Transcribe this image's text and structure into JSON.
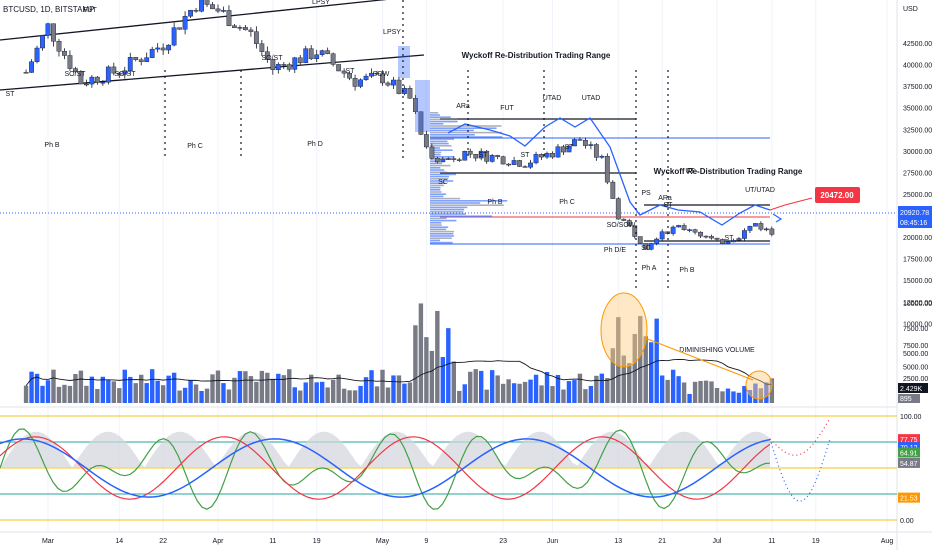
{
  "header": {
    "symbol": "BTCUSD, 1D, BITSTAMP",
    "currency": "USD"
  },
  "colors": {
    "up": "#2962ff",
    "down": "#787b86",
    "wick": "#131722",
    "current_price": "#f23645",
    "trend": "#1e40af",
    "osc_fill": "#d1d4dc",
    "osc_blue": "#2962ff",
    "osc_red": "#f23645",
    "osc_green": "#43a047",
    "osc_orange": "#ff9800",
    "band_yellow": "#f5c518",
    "band_teal": "#26a69a",
    "highlight": "#ffcc80"
  },
  "chart_data": {
    "type": "candlestick",
    "title": "BTCUSD, 1D, BITSTAMP",
    "y_unit": "USD",
    "y_ticks": [
      42500,
      40000,
      37500,
      35000,
      32500,
      30000,
      27500,
      25000,
      22500,
      20000,
      17500,
      15000,
      12500,
      10000,
      7500,
      5000,
      2500
    ],
    "ylim": [
      1000,
      43500
    ],
    "x_ticks": [
      "Mar",
      "14",
      "22",
      "Apr",
      "11",
      "19",
      "May",
      "9",
      "23",
      "Jun",
      "13",
      "21",
      "Jul",
      "11",
      "19",
      "Aug"
    ],
    "x_tick_dates": [
      "2022-03-01",
      "2022-03-14",
      "2022-03-22",
      "2022-04-01",
      "2022-04-11",
      "2022-04-19",
      "2022-05-01",
      "2022-05-09",
      "2022-05-23",
      "2022-06-01",
      "2022-06-13",
      "2022-06-21",
      "2022-07-01",
      "2022-07-11",
      "2022-07-19",
      "2022-08-01"
    ],
    "current_price": 20472.0,
    "price_label": "20920.78",
    "countdown": "08:45:16",
    "candles_close_path": [
      [
        "2022-02-25",
        39100
      ],
      [
        "2022-03-01",
        44400
      ],
      [
        "2022-03-07",
        38000
      ],
      [
        "2022-03-14",
        39300
      ],
      [
        "2022-03-22",
        42400
      ],
      [
        "2022-03-28",
        47100
      ],
      [
        "2022-04-01",
        46300
      ],
      [
        "2022-04-07",
        43500
      ],
      [
        "2022-04-11",
        39500
      ],
      [
        "2022-04-19",
        41500
      ],
      [
        "2022-04-26",
        38100
      ],
      [
        "2022-05-01",
        38500
      ],
      [
        "2022-05-06",
        36000
      ],
      [
        "2022-05-09",
        30100
      ],
      [
        "2022-05-12",
        28900
      ],
      [
        "2022-05-16",
        29800
      ],
      [
        "2022-05-23",
        29100
      ],
      [
        "2022-05-27",
        28600
      ],
      [
        "2022-06-01",
        29800
      ],
      [
        "2022-06-06",
        31300
      ],
      [
        "2022-06-10",
        28900
      ],
      [
        "2022-06-13",
        22500
      ],
      [
        "2022-06-18",
        19000
      ],
      [
        "2022-06-21",
        20800
      ],
      [
        "2022-06-26",
        21100
      ],
      [
        "2022-07-01",
        19300
      ],
      [
        "2022-07-05",
        20200
      ],
      [
        "2022-07-08",
        21600
      ],
      [
        "2022-07-11",
        20400
      ]
    ],
    "volume_ticks": [
      10000,
      7500,
      5000,
      2500
    ],
    "volume_label": "2.429K",
    "volume_label2": "895",
    "oscillator_ticks": [
      "100.00",
      "77.75",
      "70.12",
      "64.91",
      "54.87",
      "21.53",
      "0.00"
    ],
    "annotations": [
      "ST",
      "FUT",
      "SO/ST",
      "SO/ST",
      "LPSY",
      "SO/ST",
      "ST",
      "SOW",
      "LPSY",
      "Wyckoff Re-Distribution Trading Range",
      "ARa",
      "FUT",
      "UTAD",
      "UTAD",
      "ST",
      "ST",
      "ST",
      "PS",
      "SC",
      "Ph B",
      "Ph C",
      "SO/SOW",
      "Ph D/E",
      "SC",
      "Ph A",
      "Wyckoff Re-Distribution Trading Range",
      "ARa",
      "UT",
      "UT/UTAD",
      "ST",
      "ST",
      "Ph B",
      "Ph B",
      "Ph C",
      "Ph D",
      "DIMINISHING VOLUME"
    ]
  }
}
